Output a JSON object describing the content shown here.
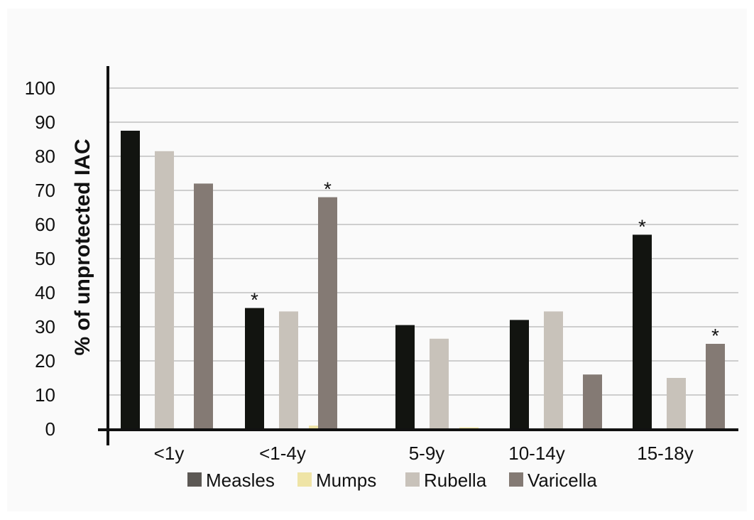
{
  "chart_data": {
    "type": "bar",
    "ylabel": "% of unprotected  IAC",
    "xlabel": "",
    "ylim": [
      0,
      100
    ],
    "yticks": [
      0,
      10,
      20,
      30,
      40,
      50,
      60,
      70,
      80,
      90,
      100
    ],
    "grid": true,
    "legend_position": "bottom",
    "categories": [
      "<1y",
      "<1-4y",
      "5-9y",
      "10-14y",
      "15-18y"
    ],
    "series": [
      {
        "name": "Measles",
        "color": "#121410",
        "values": [
          87.5,
          35.5,
          30.5,
          32,
          57
        ]
      },
      {
        "name": "Mumps",
        "color": "#efe4a6",
        "values": [
          0,
          1,
          0.5,
          0,
          0
        ]
      },
      {
        "name": "Rubella",
        "color": "#c8c2ba",
        "values": [
          81.5,
          34.5,
          26.5,
          34.5,
          15
        ]
      },
      {
        "name": "Varicella",
        "color": "#847a74",
        "values": [
          72,
          68,
          0,
          16,
          25
        ]
      }
    ],
    "annotations": [
      {
        "text": "*",
        "category": "<1-4y",
        "series": "Measles"
      },
      {
        "text": "*",
        "category": "<1-4y",
        "series": "Varicella"
      },
      {
        "text": "*",
        "category": "15-18y",
        "series": "Measles"
      },
      {
        "text": "*",
        "category": "15-18y",
        "series": "Varicella"
      }
    ]
  }
}
